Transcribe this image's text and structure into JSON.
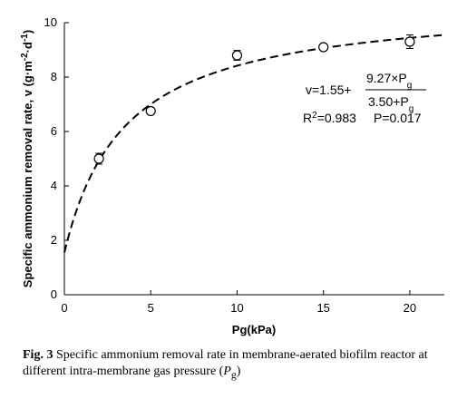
{
  "chart_data": {
    "type": "scatter",
    "xlabel": "Pg(kPa)",
    "ylabel": "Specific ammonium removal rate, v (g·m-2·d-1)",
    "ylabel_main": "Specific ammonium removal rate, v (g·m",
    "ylabel_sup1": "-2",
    "ylabel_mid": "·d",
    "ylabel_sup2": "-1",
    "ylabel_end": ")",
    "xlim": [
      0,
      22
    ],
    "ylim": [
      0,
      10
    ],
    "x_ticks": [
      "0",
      "5",
      "10",
      "15",
      "20"
    ],
    "y_ticks": [
      "0",
      "2",
      "4",
      "6",
      "8",
      "10"
    ],
    "grid": false,
    "points": [
      {
        "x": 2,
        "y": 5.0,
        "err": 0.2
      },
      {
        "x": 5,
        "y": 6.75,
        "err": 0.1
      },
      {
        "x": 10,
        "y": 8.8,
        "err": 0.18
      },
      {
        "x": 15,
        "y": 9.1,
        "err": 0.08
      },
      {
        "x": 20,
        "y": 9.3,
        "err": 0.25
      }
    ],
    "fit": {
      "a": 1.55,
      "b": 9.27,
      "c": 3.5
    },
    "equation": {
      "lhs": "v=1.55+",
      "numerator": "9.27×P",
      "numerator_sub": "g",
      "denominator": "3.50+P",
      "denominator_sub": "g",
      "r2_label": "R",
      "r2_sup": "2",
      "r2_value": "=0.983",
      "p_text": "P=0.017"
    }
  },
  "caption": {
    "label": "Fig. 3",
    "text": " Specific ammonium removal rate in membrane-aerated biofilm reactor at different intra-membrane gas pressure (",
    "pvar": "P",
    "psub": "g",
    "end": ")"
  }
}
